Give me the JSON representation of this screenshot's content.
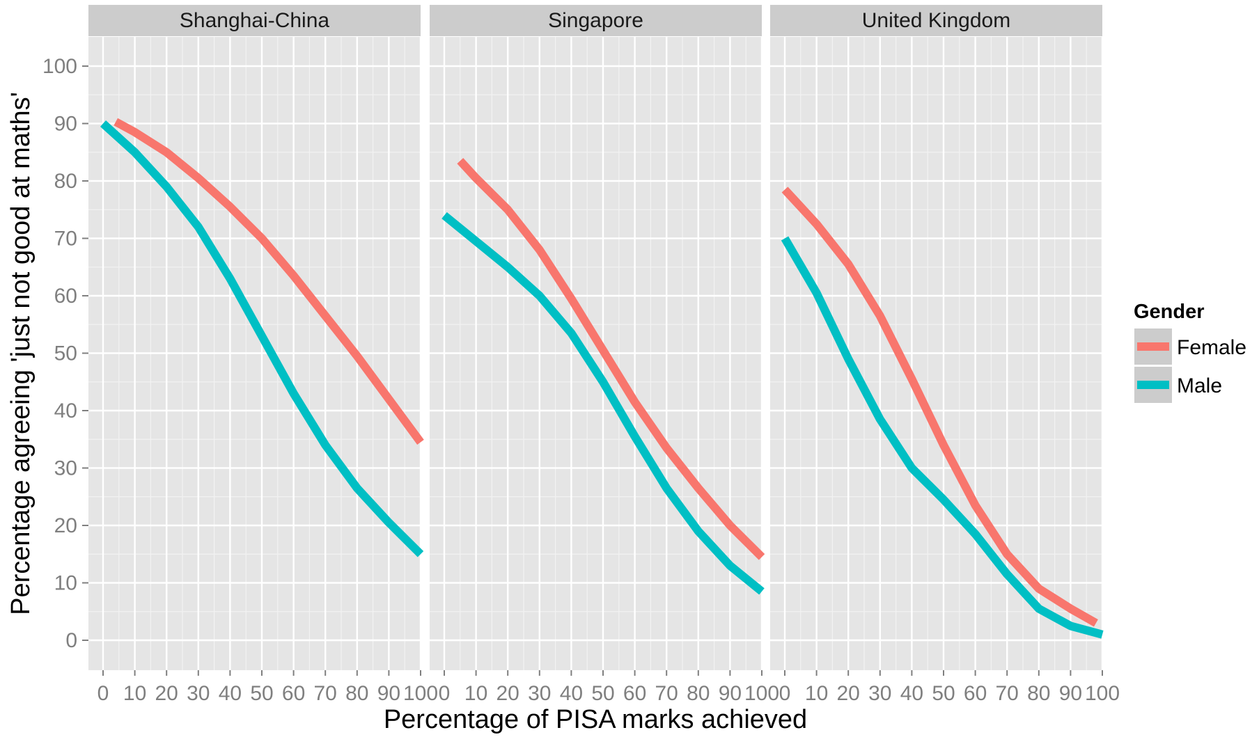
{
  "chart_data": {
    "type": "line",
    "facet_type": "facet_wrap",
    "xlabel": "Percentage of PISA marks achieved",
    "ylabel": "Percentage agreeing 'just not good at maths'",
    "xlim": [
      0,
      100
    ],
    "ylim": [
      0,
      100
    ],
    "x_ticks": [
      0,
      10,
      20,
      30,
      40,
      50,
      60,
      70,
      80,
      90,
      100
    ],
    "y_ticks": [
      0,
      10,
      20,
      30,
      40,
      50,
      60,
      70,
      80,
      90,
      100
    ],
    "grid": true,
    "legend": {
      "title": "Gender",
      "position": "right",
      "entries": [
        {
          "name": "Female",
          "color": "#F8766D"
        },
        {
          "name": "Male",
          "color": "#00BFC4"
        }
      ]
    },
    "facets": [
      {
        "title": "Shanghai-China",
        "series": [
          {
            "name": "Female",
            "color": "#F8766D",
            "x": [
              4,
              10,
              20,
              30,
              40,
              50,
              60,
              70,
              80,
              90,
              100
            ],
            "y": [
              90.3,
              88.5,
              85,
              80.5,
              75.5,
              70,
              63.5,
              56.5,
              49.5,
              42,
              34.5
            ]
          },
          {
            "name": "Male",
            "color": "#00BFC4",
            "x": [
              0,
              10,
              20,
              30,
              40,
              50,
              60,
              70,
              80,
              90,
              100
            ],
            "y": [
              90,
              85,
              79,
              72,
              63,
              53,
              43,
              34,
              26.5,
              20.5,
              15
            ]
          }
        ]
      },
      {
        "title": "Singapore",
        "series": [
          {
            "name": "Female",
            "color": "#F8766D",
            "x": [
              5,
              10,
              20,
              30,
              40,
              50,
              60,
              70,
              80,
              90,
              100
            ],
            "y": [
              83.5,
              80.5,
              75,
              68,
              59.5,
              50.5,
              41.5,
              33.5,
              26.5,
              20,
              14.5
            ]
          },
          {
            "name": "Male",
            "color": "#00BFC4",
            "x": [
              0,
              10,
              20,
              30,
              40,
              50,
              60,
              70,
              80,
              90,
              100
            ],
            "y": [
              74,
              69.5,
              65,
              60,
              53.5,
              45,
              35.5,
              26.5,
              19,
              13,
              8.5
            ]
          }
        ]
      },
      {
        "title": "United Kingdom",
        "series": [
          {
            "name": "Female",
            "color": "#F8766D",
            "x": [
              0,
              10,
              20,
              30,
              40,
              50,
              60,
              70,
              80,
              90,
              98
            ],
            "y": [
              78.5,
              72.5,
              65.5,
              56.5,
              45.5,
              34,
              23.5,
              15,
              9,
              5.5,
              3
            ]
          },
          {
            "name": "Male",
            "color": "#00BFC4",
            "x": [
              0,
              10,
              20,
              30,
              40,
              50,
              60,
              70,
              80,
              90,
              100
            ],
            "y": [
              70,
              60.5,
              49,
              38.5,
              30,
              24.5,
              18.5,
              11.5,
              5.5,
              2.5,
              1
            ]
          }
        ]
      }
    ]
  }
}
